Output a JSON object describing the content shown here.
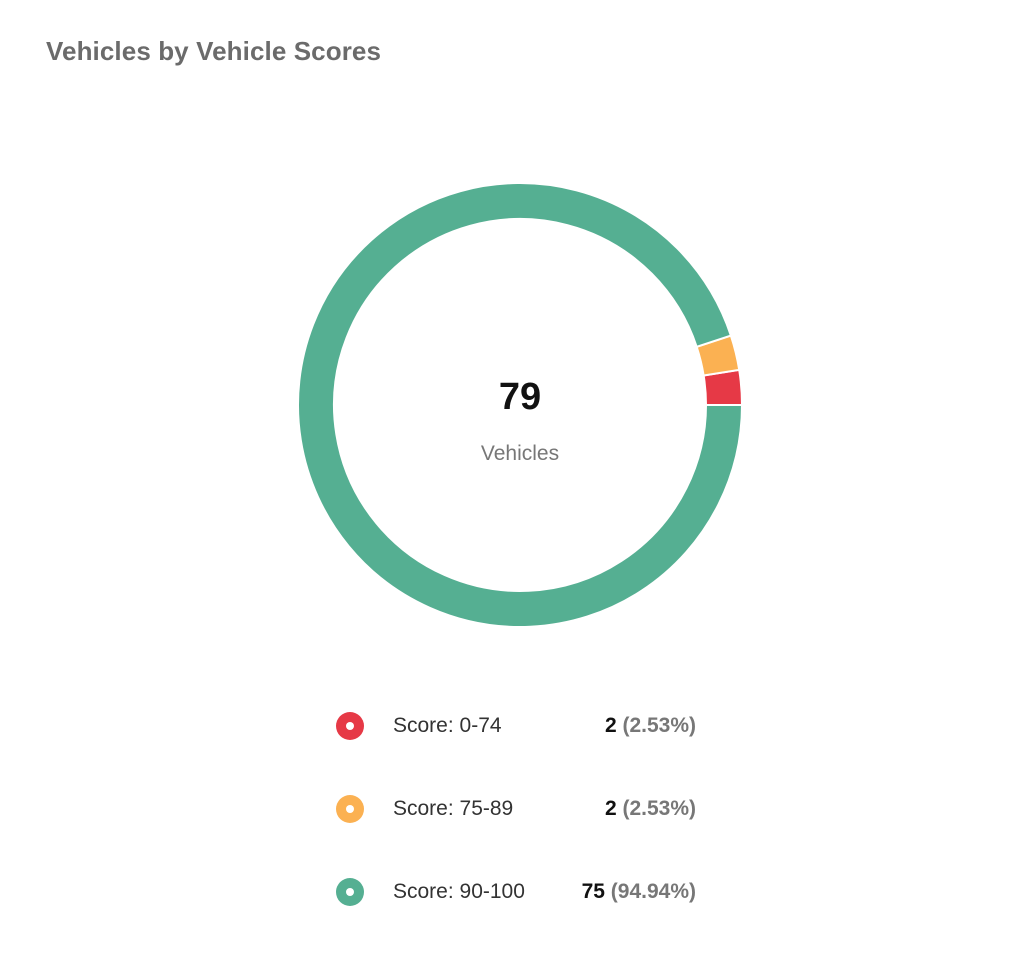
{
  "card": {
    "title": "Vehicles by Vehicle Scores"
  },
  "center": {
    "total": "79",
    "caption": "Vehicles"
  },
  "chart_data": {
    "type": "pie",
    "title": "Vehicles by Vehicle Scores",
    "variant": "donut",
    "legend_placement": "bottom",
    "categories": [
      "Score: 0-74",
      "Score: 75-89",
      "Score: 90-100"
    ],
    "values": [
      2,
      2,
      75
    ],
    "percents": [
      "(2.53%)",
      "(2.53%)",
      "(94.94%)"
    ],
    "colors": [
      "#e63946",
      "#fbb152",
      "#55af92"
    ],
    "total": 79
  },
  "legend": [
    {
      "label": "Score: 0-74",
      "count": "2",
      "percent": "(2.53%)",
      "color": "#e63946"
    },
    {
      "label": "Score: 75-89",
      "count": "2",
      "percent": "(2.53%)",
      "color": "#fbb152"
    },
    {
      "label": "Score: 90-100",
      "count": "75",
      "percent": "(94.94%)",
      "color": "#55af92"
    }
  ]
}
